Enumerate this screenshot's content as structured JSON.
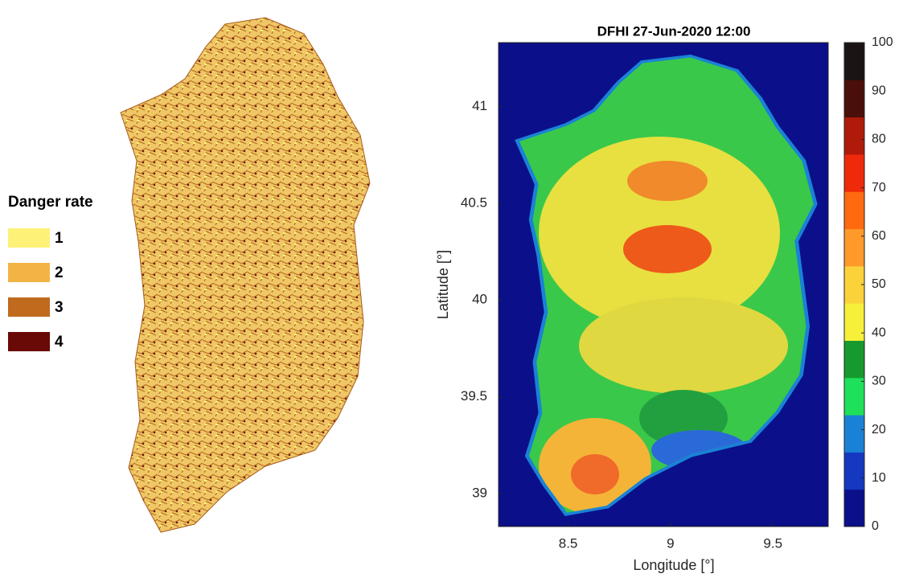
{
  "left_map": {
    "legend_title": "Danger rate",
    "legend": [
      {
        "label": "1",
        "color": "#fdf277"
      },
      {
        "label": "2",
        "color": "#f2b444"
      },
      {
        "label": "3",
        "color": "#c06a1e"
      },
      {
        "label": "4",
        "color": "#6a0a06"
      }
    ]
  },
  "right_map": {
    "title": "DFHI 27-Jun-2020 12:00",
    "xlabel": "Longitude [°]",
    "ylabel": "Latitude [°]",
    "xlim": [
      8.16,
      9.77
    ],
    "ylim": [
      38.83,
      41.33
    ],
    "xticks": [
      8.5,
      9,
      9.5
    ],
    "yticks": [
      39,
      39.5,
      40,
      40.5,
      41
    ],
    "colorbar": {
      "lim": [
        0,
        100
      ],
      "ticks": [
        0,
        10,
        20,
        30,
        40,
        50,
        60,
        70,
        80,
        90,
        100
      ],
      "colors": [
        "#0b0f8a",
        "#1538c0",
        "#1a82d6",
        "#1fe05a",
        "#169a2e",
        "#f7f03a",
        "#fbd23a",
        "#ff9a2a",
        "#ff6a10",
        "#ee2a0a",
        "#b01a0a",
        "#4a0f08",
        "#1a1414"
      ]
    }
  }
}
